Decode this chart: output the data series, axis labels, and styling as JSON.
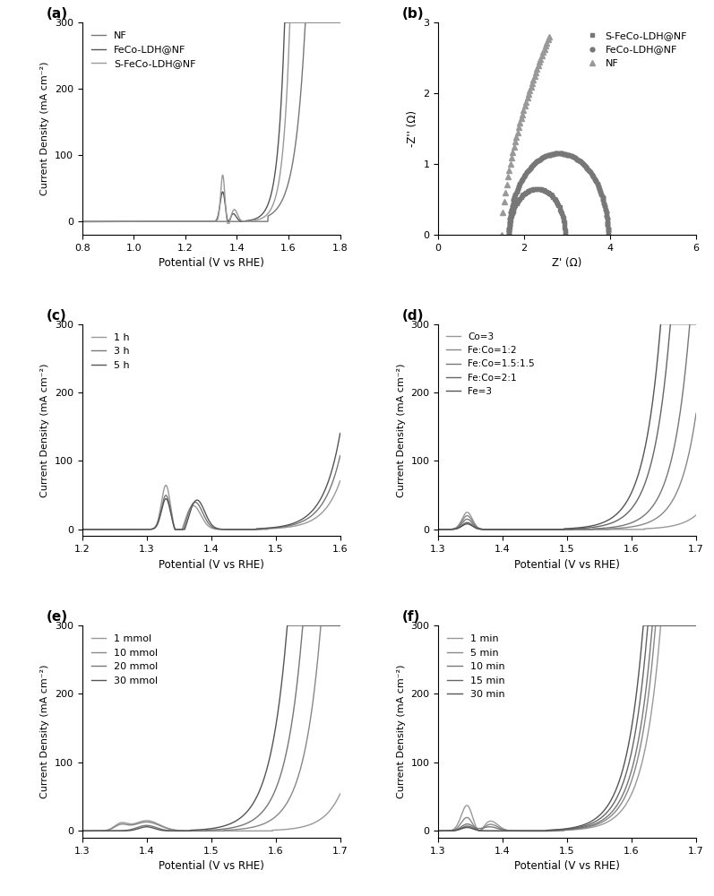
{
  "fig_width": 7.97,
  "fig_height": 10.0,
  "background_color": "#ffffff",
  "panel_labels": [
    "(a)",
    "(b)",
    "(c)",
    "(d)",
    "(e)",
    "(f)"
  ],
  "panel_a": {
    "xlabel": "Potential (V vs RHE)",
    "ylabel": "Current Density (mA cm⁻²)",
    "xlim": [
      0.8,
      1.8
    ],
    "ylim": [
      -20,
      300
    ],
    "xticks": [
      0.8,
      1.0,
      1.2,
      1.4,
      1.6,
      1.8
    ],
    "yticks": [
      0,
      100,
      200,
      300
    ],
    "legend": [
      "NF",
      "FeCo-LDH@NF",
      "S-FeCo-LDH@NF"
    ],
    "colors": [
      "#777777",
      "#555555",
      "#999999"
    ]
  },
  "panel_b": {
    "xlabel": "Z' (Ω)",
    "ylabel": "-Z'' (Ω)",
    "xlim": [
      0,
      6
    ],
    "ylim": [
      0,
      3
    ],
    "xticks": [
      0,
      2,
      4,
      6
    ],
    "yticks": [
      0,
      1,
      2,
      3
    ],
    "legend": [
      "S-FeCo-LDH@NF",
      "FeCo-LDH@NF",
      "NF"
    ],
    "colors": [
      "#777777",
      "#777777",
      "#999999"
    ]
  },
  "panel_c": {
    "xlabel": "Potential (V vs RHE)",
    "ylabel": "Current Density (mA cm⁻²)",
    "xlim": [
      1.2,
      1.6
    ],
    "ylim": [
      -10,
      300
    ],
    "xticks": [
      1.2,
      1.3,
      1.4,
      1.5,
      1.6
    ],
    "yticks": [
      0,
      100,
      200,
      300
    ],
    "legend": [
      "1 h",
      "3 h",
      "5 h"
    ],
    "colors": [
      "#999999",
      "#777777",
      "#555555"
    ]
  },
  "panel_d": {
    "xlabel": "Potential (V vs RHE)",
    "ylabel": "Current Density (mA cm⁻²)",
    "xlim": [
      1.3,
      1.7
    ],
    "ylim": [
      -10,
      300
    ],
    "xticks": [
      1.3,
      1.4,
      1.5,
      1.6,
      1.7
    ],
    "yticks": [
      0,
      100,
      200,
      300
    ],
    "legend": [
      "Co=3",
      "Fe:Co=1:2",
      "Fe:Co=1.5:1.5",
      "Fe:Co=2:1",
      "Fe=3"
    ],
    "colors": [
      "#999999",
      "#888888",
      "#777777",
      "#666666",
      "#555555"
    ]
  },
  "panel_e": {
    "xlabel": "Potential (V vs RHE)",
    "ylabel": "Current Density (mA cm⁻²)",
    "xlim": [
      1.3,
      1.7
    ],
    "ylim": [
      -10,
      300
    ],
    "xticks": [
      1.3,
      1.4,
      1.5,
      1.6,
      1.7
    ],
    "yticks": [
      0,
      100,
      200,
      300
    ],
    "legend": [
      "1 mmol",
      "10 mmol",
      "20 mmol",
      "30 mmol"
    ],
    "colors": [
      "#999999",
      "#888888",
      "#777777",
      "#555555"
    ]
  },
  "panel_f": {
    "xlabel": "Potential (V vs RHE)",
    "ylabel": "Current Density (mA cm⁻²)",
    "xlim": [
      1.3,
      1.7
    ],
    "ylim": [
      -10,
      300
    ],
    "xticks": [
      1.3,
      1.4,
      1.5,
      1.6,
      1.7
    ],
    "yticks": [
      0,
      100,
      200,
      300
    ],
    "legend": [
      "1 min",
      "5 min",
      "10 min",
      "15 min",
      "30 min"
    ],
    "colors": [
      "#999999",
      "#888888",
      "#777777",
      "#666666",
      "#555555"
    ]
  }
}
